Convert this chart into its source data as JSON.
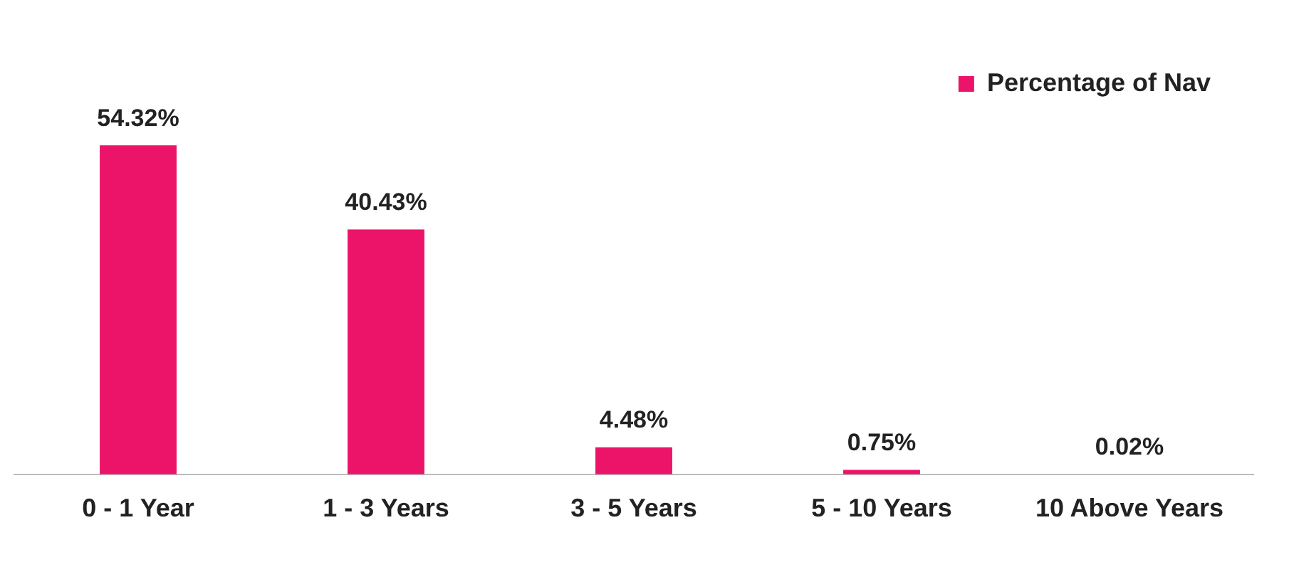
{
  "chart_data": {
    "type": "bar",
    "categories": [
      "0 - 1 Year",
      "1 - 3 Years",
      "3 - 5 Years",
      "5 - 10 Years",
      "10 Above Years"
    ],
    "series": [
      {
        "name": "Percentage of Nav",
        "color": "#ec1469",
        "values": [
          54.32,
          40.43,
          4.48,
          0.75,
          0.02
        ],
        "value_labels": [
          "54.32%",
          "40.43%",
          "4.48%",
          "0.75%",
          "0.02%"
        ]
      }
    ],
    "grid": false,
    "legend": "top right"
  }
}
